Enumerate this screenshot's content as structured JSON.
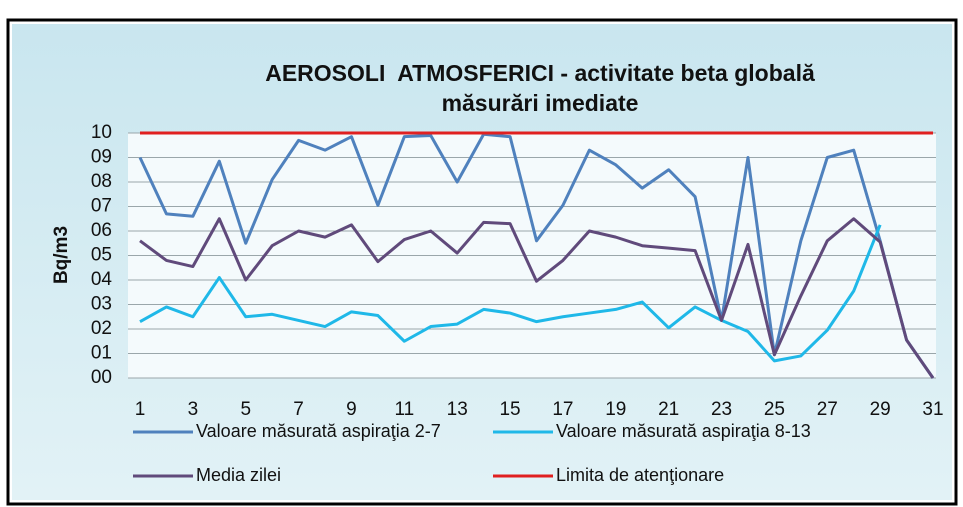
{
  "chart_data": {
    "type": "line",
    "title": "AEROSOLI  ATMOSFERICI - activitate beta globală",
    "subtitle": "măsurări imediate",
    "y_label": "Bq/m3",
    "x": [
      1,
      2,
      3,
      4,
      5,
      6,
      7,
      8,
      9,
      10,
      11,
      12,
      13,
      14,
      15,
      16,
      17,
      18,
      19,
      20,
      21,
      22,
      23,
      24,
      25,
      26,
      27,
      28,
      29,
      30,
      31
    ],
    "xlim": [
      1,
      31
    ],
    "xticks": [
      1,
      3,
      5,
      7,
      9,
      11,
      13,
      15,
      17,
      19,
      21,
      23,
      25,
      27,
      29,
      31
    ],
    "ylim": [
      0,
      10
    ],
    "yticks": [
      {
        "value": 0,
        "label": "00"
      },
      {
        "value": 1,
        "label": "01"
      },
      {
        "value": 2,
        "label": "02"
      },
      {
        "value": 3,
        "label": "03"
      },
      {
        "value": 4,
        "label": "04"
      },
      {
        "value": 5,
        "label": "05"
      },
      {
        "value": 6,
        "label": "06"
      },
      {
        "value": 7,
        "label": "07"
      },
      {
        "value": 8,
        "label": "08"
      },
      {
        "value": 9,
        "label": "09"
      },
      10
    ],
    "grid": true,
    "series": [
      {
        "name": "Valoare măsurată aspiraţia 2-7",
        "color": "#4f81bd",
        "values": [
          9.0,
          6.7,
          6.6,
          8.85,
          5.5,
          8.1,
          9.7,
          9.3,
          9.85,
          7.05,
          9.85,
          9.9,
          8.0,
          9.95,
          9.85,
          5.6,
          7.05,
          9.3,
          8.7,
          7.75,
          8.5,
          7.4,
          2.35,
          9.0,
          0.95,
          5.6,
          9.0,
          9.3,
          5.6,
          1.55,
          0
        ]
      },
      {
        "name": "Valoare măsurată aspiraţia 8-13",
        "color": "#1fb8e8",
        "values": [
          2.3,
          2.9,
          2.5,
          4.1,
          2.5,
          2.6,
          2.35,
          2.1,
          2.7,
          2.55,
          1.5,
          2.1,
          2.2,
          2.8,
          2.65,
          2.3,
          2.5,
          2.65,
          2.8,
          3.1,
          2.05,
          2.9,
          2.35,
          1.9,
          0.7,
          0.9,
          1.95,
          3.55,
          6.25,
          null,
          null
        ]
      },
      {
        "name": "Media zilei",
        "color": "#604a7b",
        "values": [
          5.6,
          4.8,
          4.55,
          6.5,
          4.0,
          5.4,
          6.0,
          5.75,
          6.25,
          4.75,
          5.65,
          6.0,
          5.1,
          6.35,
          6.3,
          3.95,
          4.8,
          6.0,
          5.75,
          5.4,
          5.3,
          5.2,
          2.35,
          5.45,
          0.95,
          3.35,
          5.6,
          6.5,
          5.55,
          1.55,
          0
        ]
      },
      {
        "name": "Limita de atenţionare",
        "color": "#e02020",
        "values": [
          10,
          10,
          10,
          10,
          10,
          10,
          10,
          10,
          10,
          10,
          10,
          10,
          10,
          10,
          10,
          10,
          10,
          10,
          10,
          10,
          10,
          10,
          10,
          10,
          10,
          10,
          10,
          10,
          10,
          10,
          10
        ]
      }
    ]
  }
}
